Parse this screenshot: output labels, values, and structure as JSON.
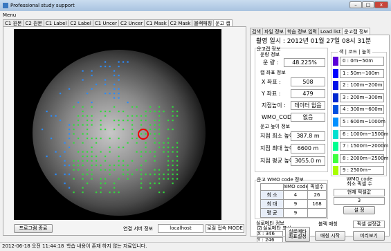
{
  "window": {
    "title": "Professional study support",
    "menu": "Menu"
  },
  "left_tabs": [
    "C1 원본",
    "C2 원본",
    "C1 Label",
    "C2 Label",
    "C1 Uncer",
    "C2 Uncer",
    "C1 Mask",
    "C2 Mask",
    "블랙매칭",
    "운고 캡"
  ],
  "right_tabs": [
    "검색",
    "파일 정보",
    "학습 정보 입력",
    "Load list",
    "운고캡 정보"
  ],
  "capture_time": "촬영 일시 : 2012년 01월 27일 08시 31분",
  "info": {
    "group": "운고캡 정보",
    "cloud": {
      "title": "운량 정보",
      "label": "운 량 :",
      "value": "48.225%"
    },
    "coords": {
      "title": "캡 좌표 정보",
      "fields": [
        {
          "label": "X 좌표 :",
          "value": "508"
        },
        {
          "label": "Y 좌표 :",
          "value": "479"
        },
        {
          "label": "지점높이 :",
          "value": "데이터 없음"
        },
        {
          "label": "WMO_CODE :",
          "value": "없음"
        }
      ]
    },
    "height": {
      "title": "운고 높이 정보",
      "fields": [
        {
          "label": "지점 최소 높이 :",
          "value": "387.8 m"
        },
        {
          "label": "지점 최대 높이 :",
          "value": "6600 m"
        },
        {
          "label": "지점 평균 높이 :",
          "value": "3055.0 m"
        }
      ]
    }
  },
  "legend": {
    "title": "색 | 코드 | 높이",
    "items": [
      {
        "label": "0 : 0m~50m",
        "color": "#5a00d8"
      },
      {
        "label": "1 : 50m~100m",
        "color": "#0000ff"
      },
      {
        "label": "2 : 100m~200m",
        "color": "#0010e8"
      },
      {
        "label": "3 : 200m~300m",
        "color": "#0028d0"
      },
      {
        "label": "4 : 300m~600m",
        "color": "#0050e0"
      },
      {
        "label": "5 : 600m~1000m",
        "color": "#0090ff"
      },
      {
        "label": "6 : 1000m~1500m",
        "color": "#00e0d0"
      },
      {
        "label": "7 : 1500m~2000m",
        "color": "#00ff90"
      },
      {
        "label": "8 : 2000m~2500m",
        "color": "#40ff40"
      },
      {
        "label": "9 : 2500m~",
        "color": "#a8ff00"
      }
    ]
  },
  "wmo": {
    "title": "운고 WMO code 정보",
    "header": [
      "WMO code",
      "픽셀수"
    ],
    "rows": [
      [
        "최 소",
        "4",
        "26"
      ],
      [
        "최 대",
        "9",
        "168"
      ],
      [
        "평 균",
        "9",
        ""
      ]
    ],
    "min_title": "WMO code\n최소 픽셀 수",
    "current_label": "현재 픽셀값",
    "current_value": "3",
    "set_button": "설 정"
  },
  "ceilometer": {
    "title": "실로메타 정보",
    "checkbox": "실로메타 표시",
    "x": "X : 346",
    "y": "Y : 246",
    "button": "실로메타 좌표설정"
  },
  "black": {
    "title": "블랙 매칭",
    "button": "매칭 시작"
  },
  "pixel": {
    "title": "픽셀 설정값",
    "button": "미리보기"
  },
  "bottom": {
    "exit": "프로그램 종료",
    "server_label": "연결 서버 정보",
    "server": "localhost",
    "mode": "로컬 접속 MODE"
  },
  "status": {
    "time": "2012-06-18 오전 11:44:18",
    "message": "학습 내용이 존재 하지 않는 자료입니다."
  }
}
